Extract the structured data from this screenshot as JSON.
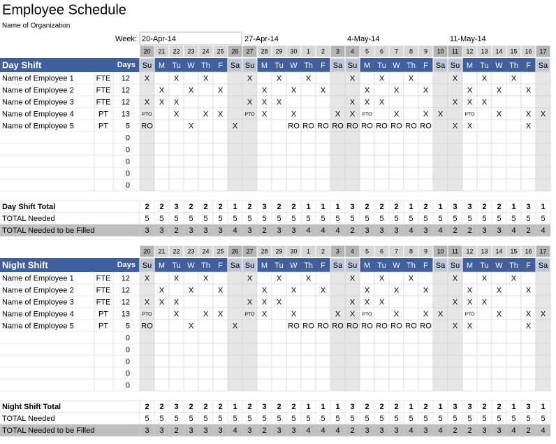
{
  "header": {
    "title": "Employee Schedule",
    "organization": "Name of Organization",
    "week_label": "Week:",
    "weeks": [
      "20-Apr-14",
      "27-Apr-14",
      "4-May-14",
      "11-May-14"
    ]
  },
  "day_numbers": [
    20,
    21,
    22,
    23,
    24,
    25,
    26,
    27,
    28,
    29,
    30,
    1,
    2,
    3,
    4,
    5,
    6,
    7,
    8,
    9,
    10,
    11,
    12,
    13,
    14,
    15,
    16,
    17
  ],
  "day_names": [
    "Su",
    "M",
    "Tu",
    "W",
    "Th",
    "F",
    "Sa",
    "Su",
    "M",
    "Tu",
    "W",
    "Th",
    "F",
    "Sa",
    "Su",
    "M",
    "Tu",
    "W",
    "Th",
    "F",
    "Sa",
    "Su",
    "M",
    "Tu",
    "W",
    "Th",
    "F",
    "Sa"
  ],
  "sections": [
    {
      "title": "Day Shift",
      "days_header": "Days",
      "employees": [
        {
          "name": "Name of Employee 1",
          "type": "FTE",
          "days": 12,
          "schedule": [
            "X",
            null,
            "X",
            null,
            "X",
            null,
            null,
            "X",
            null,
            "X",
            null,
            "X",
            null,
            null,
            "X",
            null,
            "X",
            null,
            "X",
            null,
            null,
            "X",
            null,
            "X",
            null,
            "X",
            null,
            null
          ]
        },
        {
          "name": "Name of Employee 2",
          "type": "FTE",
          "days": 12,
          "schedule": [
            null,
            "X",
            null,
            "X",
            null,
            "X",
            null,
            null,
            "X",
            null,
            "X",
            null,
            "X",
            null,
            null,
            "X",
            null,
            "X",
            null,
            "X",
            null,
            null,
            "X",
            null,
            "X",
            null,
            "X",
            null
          ]
        },
        {
          "name": "Name of Employee 3",
          "type": "FTE",
          "days": 12,
          "schedule": [
            "X",
            "X",
            "X",
            null,
            null,
            null,
            null,
            "X",
            "X",
            "X",
            null,
            null,
            null,
            null,
            "X",
            "X",
            "X",
            null,
            null,
            null,
            null,
            "X",
            "X",
            "X",
            null,
            null,
            null,
            null
          ]
        },
        {
          "name": "Name of Employee 4",
          "type": "PT",
          "days": 13,
          "schedule": [
            "PTO",
            null,
            "X",
            null,
            "X",
            "X",
            null,
            "PTO",
            "X",
            null,
            "X",
            null,
            null,
            "X",
            "X",
            "PTO",
            null,
            "X",
            null,
            "X",
            "X",
            null,
            "PTO",
            null,
            "X",
            null,
            "X",
            "X"
          ]
        },
        {
          "name": "Name of Employee 5",
          "type": "PT",
          "days": 5,
          "schedule": [
            "RO",
            null,
            null,
            "X",
            null,
            null,
            "X",
            null,
            null,
            null,
            "RO",
            "RO",
            "RO",
            "RO",
            "RO",
            "RO",
            "RO",
            "RO",
            "RO",
            "RO",
            null,
            "X",
            "X",
            null,
            null,
            null,
            "X",
            null
          ]
        }
      ],
      "blank_days": [
        0,
        0,
        0,
        0,
        0
      ],
      "total_label": "Day Shift Total",
      "totals": [
        2,
        2,
        3,
        2,
        2,
        2,
        1,
        2,
        3,
        2,
        2,
        1,
        1,
        1,
        3,
        2,
        2,
        2,
        1,
        2,
        1,
        3,
        3,
        2,
        2,
        1,
        3,
        1
      ],
      "needed_label": "TOTAL Needed",
      "needed": [
        5,
        5,
        5,
        5,
        5,
        5,
        5,
        5,
        5,
        5,
        5,
        5,
        5,
        5,
        5,
        5,
        5,
        5,
        5,
        5,
        5,
        5,
        5,
        5,
        5,
        5,
        5,
        5
      ],
      "filled_label": "TOTAL Needed to be Filled",
      "filled": [
        3,
        3,
        2,
        3,
        3,
        3,
        4,
        3,
        2,
        3,
        3,
        4,
        4,
        4,
        2,
        3,
        3,
        3,
        4,
        3,
        4,
        2,
        2,
        3,
        3,
        4,
        2,
        4
      ]
    },
    {
      "title": "Night Shift",
      "days_header": "Days",
      "employees": [
        {
          "name": "Name of Employee 1",
          "type": "FTE",
          "days": 12,
          "schedule": [
            "X",
            null,
            "X",
            null,
            "X",
            null,
            null,
            "X",
            null,
            "X",
            null,
            "X",
            null,
            null,
            "X",
            null,
            "X",
            null,
            "X",
            null,
            null,
            "X",
            null,
            "X",
            null,
            "X",
            null,
            null
          ]
        },
        {
          "name": "Name of Employee 2",
          "type": "FTE",
          "days": 12,
          "schedule": [
            null,
            "X",
            null,
            "X",
            null,
            "X",
            null,
            null,
            "X",
            null,
            "X",
            null,
            "X",
            null,
            null,
            "X",
            null,
            "X",
            null,
            "X",
            null,
            null,
            "X",
            null,
            "X",
            null,
            "X",
            null
          ]
        },
        {
          "name": "Name of Employee 3",
          "type": "FTE",
          "days": 12,
          "schedule": [
            "X",
            "X",
            "X",
            null,
            null,
            null,
            null,
            "X",
            "X",
            "X",
            null,
            null,
            null,
            null,
            "X",
            "X",
            "X",
            null,
            null,
            null,
            null,
            "X",
            "X",
            "X",
            null,
            null,
            null,
            null
          ]
        },
        {
          "name": "Name of Employee 4",
          "type": "PT",
          "days": 13,
          "schedule": [
            "PTO",
            null,
            "X",
            null,
            "X",
            "X",
            null,
            "PTO",
            "X",
            null,
            "X",
            null,
            null,
            "X",
            "X",
            "PTO",
            null,
            "X",
            null,
            "X",
            "X",
            null,
            "PTO",
            null,
            "X",
            null,
            "X",
            "X"
          ]
        },
        {
          "name": "Name of Employee 5",
          "type": "PT",
          "days": 5,
          "schedule": [
            "RO",
            null,
            null,
            "X",
            null,
            null,
            "X",
            null,
            null,
            null,
            "RO",
            "RO",
            "RO",
            "RO",
            "RO",
            "RO",
            "RO",
            "RO",
            "RO",
            "RO",
            null,
            "X",
            "X",
            null,
            null,
            null,
            "X",
            null
          ]
        }
      ],
      "blank_days": [
        0,
        0,
        0,
        0,
        0
      ],
      "total_label": "Night Shift Total",
      "totals": [
        2,
        2,
        3,
        2,
        2,
        2,
        1,
        2,
        3,
        2,
        2,
        1,
        1,
        1,
        3,
        2,
        2,
        2,
        1,
        2,
        1,
        3,
        3,
        2,
        2,
        1,
        3,
        1
      ],
      "needed_label": "TOTAL Needed",
      "needed": [
        5,
        5,
        5,
        5,
        5,
        5,
        5,
        5,
        5,
        5,
        5,
        5,
        5,
        5,
        5,
        5,
        5,
        5,
        5,
        5,
        5,
        5,
        5,
        5,
        5,
        5,
        5,
        5
      ],
      "filled_label": "TOTAL Needed to be Filled",
      "filled": [
        3,
        3,
        2,
        3,
        3,
        3,
        4,
        3,
        2,
        3,
        3,
        4,
        4,
        4,
        2,
        3,
        3,
        3,
        4,
        3,
        4,
        2,
        2,
        3,
        3,
        4,
        2,
        4
      ]
    }
  ]
}
